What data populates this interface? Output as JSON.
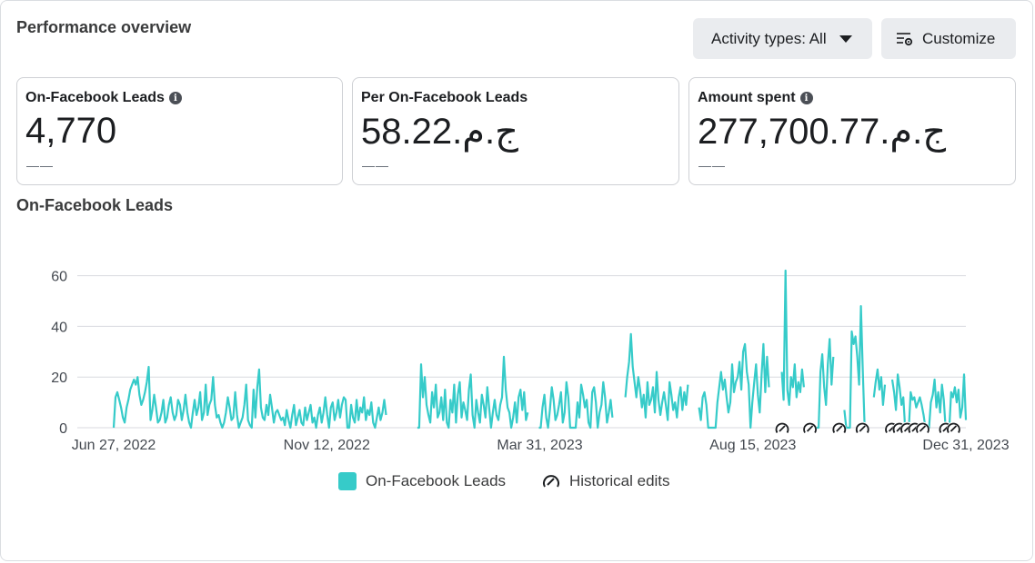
{
  "header": {
    "title": "Performance overview",
    "activity_button": "Activity types: All",
    "customize_button": "Customize"
  },
  "cards": [
    {
      "label": "On-Facebook Leads",
      "value": "4,770",
      "sub": "——",
      "info": true
    },
    {
      "label": "Per On-Facebook Leads",
      "value": "58.22ج.م.‏",
      "sub": "——",
      "info": false
    },
    {
      "label": "Amount spent",
      "value": "277,700.77ج.م.‏",
      "sub": "——",
      "info": true
    }
  ],
  "chart_title": "On-Facebook Leads",
  "colors": {
    "series": "#36cbc9",
    "grid": "#d8dadf",
    "axis_text": "#444950"
  },
  "legend": {
    "series": "On-Facebook Leads",
    "edits": "Historical edits",
    "edits_icon": "historical-edit-icon"
  },
  "chart_data": {
    "type": "line",
    "series": [
      {
        "name": "On-Facebook Leads",
        "values": [
          0,
          12,
          14,
          11,
          8,
          4,
          2,
          8,
          11,
          15,
          17,
          19,
          17,
          20,
          13,
          9,
          11,
          14,
          18,
          24,
          3,
          7,
          13,
          8,
          2,
          3,
          6,
          11,
          2,
          4,
          9,
          12,
          6,
          3,
          5,
          11,
          9,
          3,
          7,
          13,
          6,
          2,
          0,
          6,
          11,
          5,
          8,
          14,
          3,
          6,
          17,
          5,
          9,
          11,
          20,
          9,
          4,
          5,
          2,
          0,
          2,
          6,
          12,
          8,
          3,
          4,
          14,
          5,
          0,
          2,
          4,
          9,
          17,
          3,
          1,
          0,
          15,
          4,
          16,
          23,
          8,
          4,
          3,
          9,
          5,
          13,
          8,
          2,
          6,
          7,
          5,
          3,
          4,
          1,
          7,
          3,
          0,
          5,
          9,
          1,
          4,
          7,
          2,
          1,
          8,
          3,
          6,
          9,
          2,
          4,
          0,
          5,
          8,
          2,
          6,
          12,
          5,
          0,
          8,
          10,
          3,
          6,
          11,
          4,
          9,
          12,
          11,
          0,
          0,
          9,
          4,
          2,
          11,
          3,
          8,
          6,
          12,
          3,
          7,
          5,
          10,
          2,
          0,
          4,
          8,
          3,
          6,
          11,
          5,
          23,
          10,
          11,
          0,
          0,
          0,
          0,
          0,
          0,
          0,
          0,
          0,
          0,
          0,
          0,
          0,
          0,
          0,
          25,
          12,
          20,
          9,
          5,
          2,
          14,
          8,
          17,
          4,
          6,
          12,
          3,
          15,
          2,
          0,
          11,
          6,
          17,
          2,
          13,
          18,
          4,
          10,
          7,
          3,
          15,
          21,
          5,
          0,
          11,
          6,
          2,
          13,
          9,
          4,
          16,
          8,
          0,
          6,
          11,
          5,
          3,
          9,
          12,
          28,
          15,
          8,
          6,
          0,
          4,
          10,
          2,
          12,
          15,
          7,
          14,
          3,
          6,
          10,
          5,
          17,
          9,
          0,
          0,
          0,
          8,
          13,
          4,
          0,
          7,
          16,
          11,
          3,
          5,
          9,
          14,
          2,
          6,
          18,
          12,
          0,
          0,
          0,
          0,
          10,
          4,
          17,
          13,
          8,
          11,
          2,
          0,
          14,
          16,
          10,
          0,
          6,
          9,
          18,
          12,
          2,
          6,
          11,
          4,
          0,
          0,
          0,
          0,
          0,
          0,
          12,
          20,
          26,
          37,
          24,
          18,
          12,
          20,
          15,
          8,
          13,
          4,
          18,
          9,
          11,
          16,
          6,
          22,
          11,
          5,
          10,
          14,
          9,
          3,
          18,
          13,
          7,
          10,
          4,
          12,
          16,
          7,
          14,
          9,
          17,
          6,
          11,
          4,
          15,
          10,
          8,
          3,
          12,
          14,
          9,
          0,
          0,
          0,
          0,
          0,
          10,
          16,
          22,
          15,
          19,
          12,
          6,
          10,
          25,
          14,
          18,
          20,
          26,
          15,
          30,
          33,
          22,
          17,
          0,
          10,
          18,
          25,
          13,
          6,
          21,
          33,
          14,
          28,
          16,
          4,
          20,
          12,
          8,
          18,
          31,
          22,
          11,
          62,
          15,
          9,
          20,
          16,
          25,
          12,
          18,
          14,
          23,
          16,
          22,
          13,
          0,
          0,
          0,
          0,
          0,
          0,
          22,
          29,
          16,
          9,
          25,
          35,
          17,
          28,
          35,
          12,
          18,
          24,
          16,
          7,
          0,
          0,
          0,
          38,
          33,
          36,
          28,
          17,
          48,
          22,
          0,
          0,
          0,
          0,
          0,
          12,
          18,
          23,
          15,
          20,
          9,
          17,
          13,
          11,
          6,
          19,
          14,
          7,
          21,
          16,
          9,
          12,
          0,
          0,
          0,
          14,
          11,
          12,
          8,
          10,
          12,
          9,
          5,
          0,
          0,
          0,
          10,
          13,
          19,
          8,
          14,
          6,
          17,
          11,
          0,
          0,
          0,
          14,
          12,
          16,
          10,
          15,
          4,
          8,
          21,
          3
        ]
      }
    ],
    "gaps": [
      [
        149,
        164
      ],
      [
        226,
        230
      ],
      [
        272,
        277
      ],
      [
        313,
        317
      ],
      [
        357,
        362
      ],
      [
        376,
        378
      ],
      [
        392,
        396
      ],
      [
        410,
        412
      ],
      [
        420,
        422
      ]
    ],
    "x_tick_labels": [
      "Jun 27, 2022",
      "Nov 12, 2022",
      "Mar 31, 2023",
      "Aug 15, 2023",
      "Dec 31, 2023"
    ],
    "x_range": [
      "Jun 27, 2022",
      "Dec 31, 2023"
    ],
    "y_ticks": [
      0,
      20,
      40,
      60
    ],
    "ylim": [
      0,
      62
    ],
    "grid": true,
    "legend_position": "bottom",
    "historical_edits": [
      "2023-09-03",
      "2023-09-21",
      "2023-10-10",
      "2023-10-25",
      "2023-11-13",
      "2023-11-18",
      "2023-11-23",
      "2023-11-28",
      "2023-12-03",
      "2023-12-18",
      "2023-12-23"
    ]
  }
}
